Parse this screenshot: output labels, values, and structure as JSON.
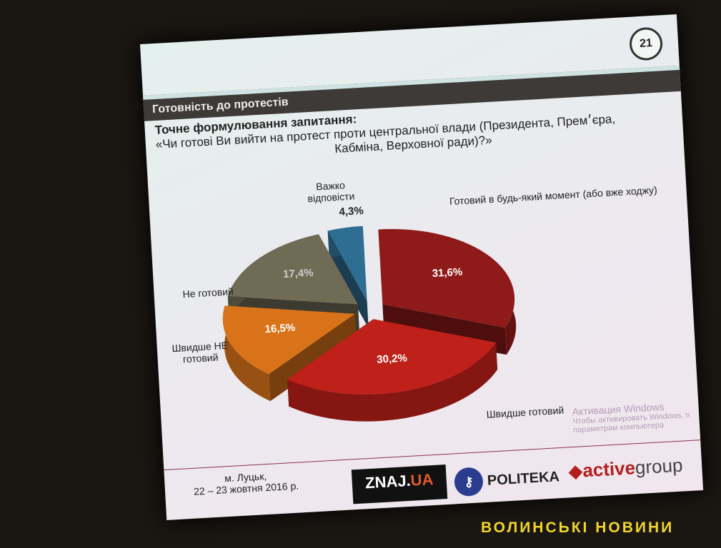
{
  "slide": {
    "number": "21",
    "section_title": "Готовність до протестів",
    "question_heading": "Точне формулювання запитання:",
    "question_line1": "«Чи готові Ви вийти на протест проти центральної влади (Президента, Прем׳єра,",
    "question_line2": "Кабміна, Верховної ради)?»",
    "footer": {
      "city": "м. Луцьк,",
      "dates": "22 – 23 жовтня  2016 р.",
      "logo_znaj": "ZNAJ.",
      "logo_znaj_ua": "UA",
      "logo_politeka": "POLITEKA",
      "logo_active": "active",
      "logo_group": "group"
    }
  },
  "windows_notice": {
    "title": "Активация Windows",
    "line1": "Чтобы активировать Windows, п",
    "line2": "параметрам компьютера"
  },
  "watermark": "ВОЛИНСЬКІ НОВИНИ",
  "chart_data": {
    "type": "pie",
    "style": "3d-exploded",
    "categories": [
      "Готовий в будь-який момент (або вже ходжу)",
      "Швидше готовий",
      "Швидше НЕ готовий",
      "Не готовий",
      "Важко відповісти"
    ],
    "values": [
      31.6,
      30.2,
      16.5,
      17.4,
      4.3
    ],
    "value_labels": [
      "31,6%",
      "30,2%",
      "16,5%",
      "17,4%",
      "4,3%"
    ],
    "colors": [
      "#8e1a1a",
      "#c0201a",
      "#d9731a",
      "#6f6b55",
      "#2f6e93"
    ]
  }
}
